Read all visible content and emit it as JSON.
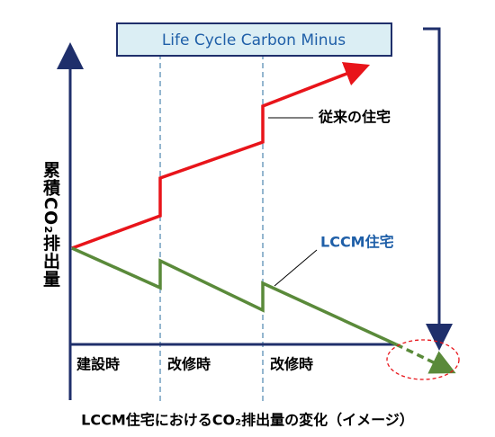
{
  "banner": "Life Cycle Carbon Minus",
  "y_axis_label": "累積CO₂排出量",
  "series_labels": {
    "conventional": "従来の住宅",
    "lccm": "LCCM住宅"
  },
  "phases": [
    "建設時",
    "改修時",
    "改修時"
  ],
  "caption": "LCCM住宅におけるCO₂排出量の変化（イメージ）"
}
